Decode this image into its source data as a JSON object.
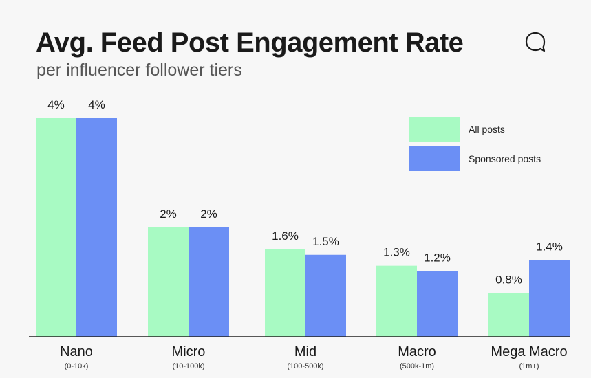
{
  "header": {
    "title": "Avg. Feed Post Engagement Rate",
    "subtitle": "per influencer follower tiers",
    "logo_icon": "speech-bubble-icon"
  },
  "colors": {
    "all_posts": "#a8fac3",
    "sponsored_posts": "#6b8ff5",
    "axis": "#222222",
    "text": "#1a1a1a"
  },
  "legend": {
    "items": [
      {
        "label": "All posts",
        "color": "#a8fac3"
      },
      {
        "label": "Sponsored posts",
        "color": "#6b8ff5"
      }
    ]
  },
  "chart_data": {
    "type": "bar",
    "title": "Avg. Feed Post Engagement Rate",
    "subtitle": "per influencer follower tiers",
    "categories": [
      "Nano",
      "Micro",
      "Mid",
      "Macro",
      "Mega Macro"
    ],
    "category_sublabels": [
      "(0-10k)",
      "(10-100k)",
      "(100-500k)",
      "(500k-1m)",
      "(1m+)"
    ],
    "series": [
      {
        "name": "All posts",
        "values": [
          4,
          2,
          1.6,
          1.3,
          0.8
        ],
        "labels": [
          "4%",
          "2%",
          "1.6%",
          "1.3%",
          "0.8%"
        ]
      },
      {
        "name": "Sponsored posts",
        "values": [
          4,
          2,
          1.5,
          1.2,
          1.4
        ],
        "labels": [
          "4%",
          "2%",
          "1.5%",
          "1.2%",
          "1.4%"
        ]
      }
    ],
    "unit": "%",
    "ylim": [
      0,
      4
    ],
    "grid": false,
    "legend_position": "top-right"
  }
}
